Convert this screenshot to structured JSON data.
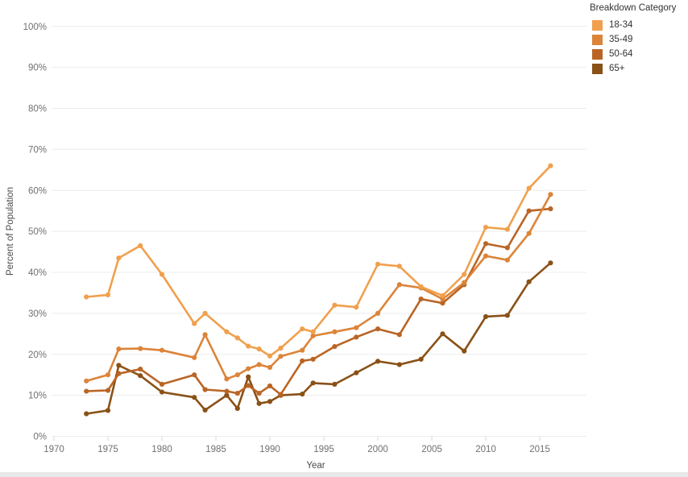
{
  "legend": {
    "title": "Breakdown Category",
    "items": [
      {
        "label": "18-34",
        "color": "#F0A04E"
      },
      {
        "label": "35-49",
        "color": "#DC8439"
      },
      {
        "label": "50-64",
        "color": "#BA6525"
      },
      {
        "label": "65+",
        "color": "#8A5117"
      }
    ]
  },
  "chart_data": {
    "type": "line",
    "title": "",
    "xlabel": "Year",
    "ylabel": "Percent of Population",
    "grid": "horizontal",
    "legend_position": "top-right",
    "marker": "circle",
    "ylim": [
      0,
      100
    ],
    "xlim": [
      1969.5,
      2019.5
    ],
    "y_tick_values": [
      0,
      10,
      20,
      30,
      40,
      50,
      60,
      70,
      80,
      90,
      100
    ],
    "y_tick_labels": [
      "0%",
      "10%",
      "20%",
      "30%",
      "40%",
      "50%",
      "60%",
      "70%",
      "80%",
      "90%",
      "100%"
    ],
    "x_tick_values": [
      1970,
      1975,
      1980,
      1985,
      1990,
      1995,
      2000,
      2005,
      2010,
      2015
    ],
    "x_tick_labels": [
      "1970",
      "1975",
      "1980",
      "1985",
      "1990",
      "1995",
      "2000",
      "2005",
      "2010",
      "2015"
    ],
    "x": [
      1973,
      1975,
      1976,
      1978,
      1980,
      1983,
      1984,
      1986,
      1987,
      1988,
      1989,
      1990,
      1991,
      1993,
      1994,
      1996,
      1998,
      2000,
      2002,
      2004,
      2006,
      2008,
      2010,
      2012,
      2014,
      2016
    ],
    "series": [
      {
        "name": "18-34",
        "color": "#F0A04E",
        "values": [
          34,
          34.5,
          43.5,
          46.5,
          39.5,
          27.5,
          30,
          25.5,
          24,
          22,
          21.3,
          19.6,
          21.5,
          26.2,
          25.5,
          32,
          31.5,
          42,
          41.5,
          36.5,
          34.3,
          39.5,
          51,
          50.5,
          60.5,
          66
        ]
      },
      {
        "name": "35-49",
        "color": "#DC8439",
        "values": [
          13.5,
          15,
          21.3,
          21.4,
          21,
          19.2,
          24.8,
          14,
          15,
          16.5,
          17.5,
          16.8,
          19.5,
          21,
          24.5,
          25.5,
          26.5,
          30,
          37,
          36.2,
          33.5,
          37.5,
          44,
          43,
          49.5,
          59
        ]
      },
      {
        "name": "50-64",
        "color": "#BA6525",
        "values": [
          11,
          11.2,
          15.3,
          16.4,
          12.7,
          15,
          11.4,
          11,
          10.5,
          12.4,
          10.5,
          12.3,
          10.2,
          18.4,
          18.8,
          21.9,
          24.2,
          26.2,
          24.8,
          33.5,
          32.5,
          37,
          47,
          46,
          55,
          55.5
        ]
      },
      {
        "name": "65+",
        "color": "#8A5117",
        "values": [
          5.5,
          6.3,
          17.3,
          14.8,
          10.8,
          9.5,
          6.4,
          10,
          6.8,
          14.5,
          8,
          8.5,
          10,
          10.3,
          13,
          12.7,
          15.5,
          18.3,
          17.5,
          18.8,
          25,
          20.8,
          29.2,
          29.5,
          37.7,
          42.3
        ]
      }
    ]
  }
}
